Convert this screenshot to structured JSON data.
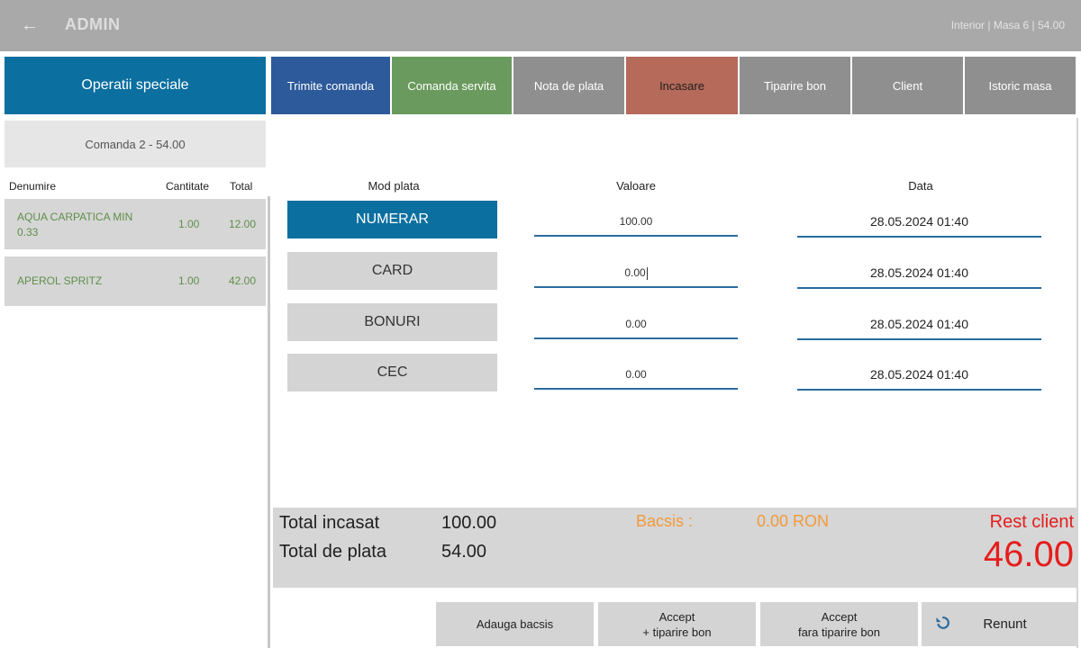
{
  "header": {
    "back_icon": "arrow-left-icon",
    "title": "ADMIN",
    "status": "Interior  |  Masa 6  |  54.00"
  },
  "special_ops": {
    "label": "Operatii speciale"
  },
  "actions": [
    {
      "label": "Trimite comanda",
      "color": "#2d5a9a"
    },
    {
      "label": "Comanda servita",
      "color": "#6a9a5d"
    },
    {
      "label": "Nota de plata",
      "color": "#8f8f8f"
    },
    {
      "label": "Incasare",
      "color": "#b56a5a"
    },
    {
      "label": "Tiparire bon",
      "color": "#8f8f8f"
    },
    {
      "label": "Client",
      "color": "#8f8f8f"
    },
    {
      "label": "Istoric masa",
      "color": "#8f8f8f"
    }
  ],
  "order": {
    "title": "Comanda 2 - 54.00",
    "columns": [
      "Denumire",
      "Cantitate",
      "Total"
    ],
    "items": [
      {
        "name_line1": "AQUA CARPATICA MIN",
        "name_line2": "0.33",
        "qty": "1.00",
        "total": "12.00"
      },
      {
        "name": "APEROL SPRITZ",
        "qty": "1.00",
        "total": "42.00"
      }
    ]
  },
  "payment": {
    "headers": {
      "mode": "Mod plata",
      "value": "Valoare",
      "date": "Data"
    },
    "rows": [
      {
        "mode": "NUMERAR",
        "value": "100.00",
        "date": "28.05.2024 01:40",
        "active": true
      },
      {
        "mode": "CARD",
        "value": "0.00",
        "date": "28.05.2024 01:40",
        "active": false
      },
      {
        "mode": "BONURI",
        "value": "0.00",
        "date": "28.05.2024 01:40",
        "active": false
      },
      {
        "mode": "CEC",
        "value": "0.00",
        "date": "28.05.2024 01:40",
        "active": false
      }
    ]
  },
  "summary": {
    "total_collected_label": "Total incasat",
    "total_collected": "100.00",
    "total_due_label": "Total de plata",
    "total_due": "54.00",
    "tip_label": "Bacsis :",
    "tip_value": "0.00 RON",
    "rest_label": "Rest client",
    "rest_value": "46.00"
  },
  "bottom": {
    "add_tip": "Adauga bacsis",
    "accept_print_line1": "Accept",
    "accept_print_line2": "+ tiparire bon",
    "accept_noprint_line1": "Accept",
    "accept_noprint_line2": "fara tiparire bon",
    "cancel": "Renunt",
    "cancel_icon": "undo-icon"
  },
  "colors": {
    "topbar": "#a9a9a9",
    "primary": "#0b6fa0",
    "tip": "#f29a3a",
    "rest": "#e51d1d",
    "item_text": "#5f8f4a"
  }
}
